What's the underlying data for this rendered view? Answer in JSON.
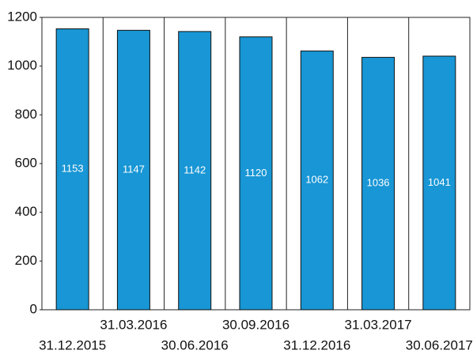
{
  "chart_data": {
    "type": "bar",
    "categories": [
      "31.12.2015",
      "31.03.2016",
      "30.06.2016",
      "30.09.2016",
      "31.12.2016",
      "31.03.2017",
      "30.06.2017"
    ],
    "values": [
      1153,
      1147,
      1142,
      1120,
      1062,
      1036,
      1041
    ],
    "color": "#1896d5",
    "ylim": [
      0,
      1200
    ],
    "yticks": [
      0,
      200,
      400,
      600,
      800,
      1000,
      1200
    ]
  }
}
